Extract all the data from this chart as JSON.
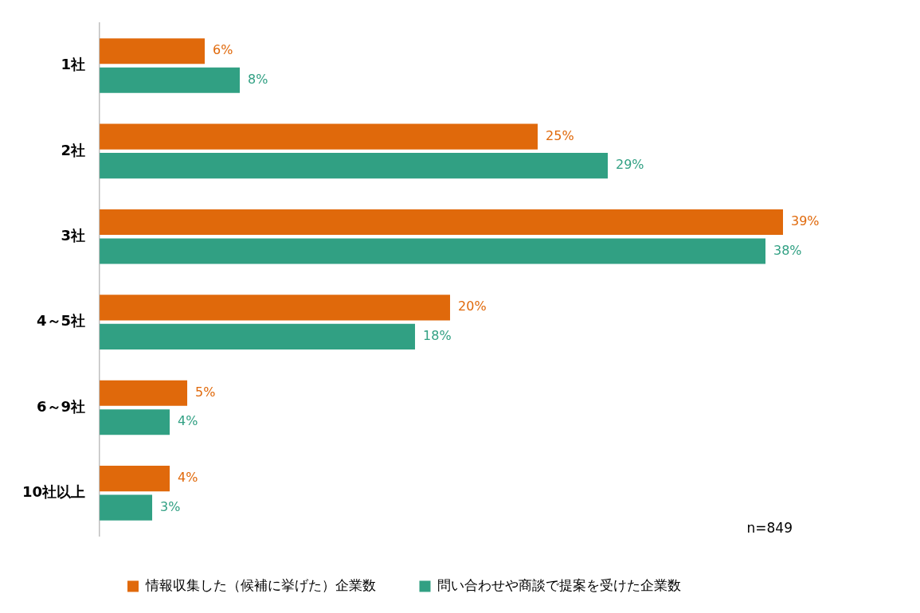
{
  "chart_data": {
    "type": "bar",
    "orientation": "horizontal",
    "categories": [
      "1社",
      "2社",
      "3社",
      "4～5社",
      "6～9社",
      "10社以上"
    ],
    "series": [
      {
        "name": "情報収集した（候補に挙げた）企業数",
        "color": "#e0690b",
        "values": [
          6,
          25,
          39,
          20,
          5,
          4
        ],
        "value_labels": [
          "6%",
          "25%",
          "39%",
          "20%",
          "5%",
          "4%"
        ]
      },
      {
        "name": "問い合わせや商談で提案を受けた企業数",
        "color": "#31a083",
        "values": [
          8,
          29,
          38,
          18,
          4,
          3
        ],
        "value_labels": [
          "8%",
          "29%",
          "38%",
          "18%",
          "4%",
          "3%"
        ]
      }
    ],
    "legend": "bottom",
    "grid": false,
    "tick_labels": "y",
    "annotations": [
      "n=849"
    ]
  }
}
